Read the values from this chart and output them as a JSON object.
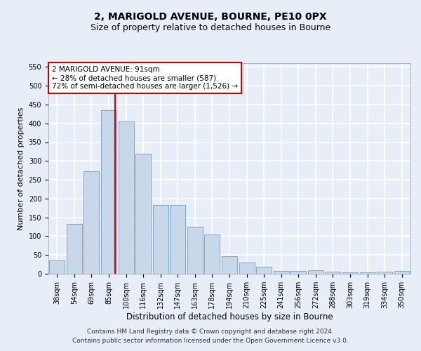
{
  "title": "2, MARIGOLD AVENUE, BOURNE, PE10 0PX",
  "subtitle": "Size of property relative to detached houses in Bourne",
  "xlabel": "Distribution of detached houses by size in Bourne",
  "ylabel": "Number of detached properties",
  "categories": [
    "38sqm",
    "54sqm",
    "69sqm",
    "85sqm",
    "100sqm",
    "116sqm",
    "132sqm",
    "147sqm",
    "163sqm",
    "178sqm",
    "194sqm",
    "210sqm",
    "225sqm",
    "241sqm",
    "256sqm",
    "272sqm",
    "288sqm",
    "303sqm",
    "319sqm",
    "334sqm",
    "350sqm"
  ],
  "values": [
    35,
    132,
    272,
    435,
    405,
    320,
    183,
    183,
    125,
    104,
    46,
    30,
    18,
    7,
    7,
    10,
    5,
    4,
    3,
    5,
    7
  ],
  "bar_color": "#c8d8ea",
  "bar_edge_color": "#7aa8c8",
  "vline_color": "#cc0000",
  "annotation_text": "2 MARIGOLD AVENUE: 91sqm\n← 28% of detached houses are smaller (587)\n72% of semi-detached houses are larger (1,526) →",
  "annotation_box_color": "#ffffff",
  "annotation_box_edge_color": "#cc0000",
  "ylim": [
    0,
    560
  ],
  "yticks": [
    0,
    50,
    100,
    150,
    200,
    250,
    300,
    350,
    400,
    450,
    500,
    550
  ],
  "background_color": "#e8eef8",
  "grid_color": "#ffffff",
  "footer_line1": "Contains HM Land Registry data © Crown copyright and database right 2024.",
  "footer_line2": "Contains public sector information licensed under the Open Government Licence v3.0.",
  "title_fontsize": 10,
  "subtitle_fontsize": 9,
  "xlabel_fontsize": 8.5,
  "ylabel_fontsize": 8,
  "tick_fontsize": 7,
  "footer_fontsize": 6.5,
  "annotation_fontsize": 7.5
}
